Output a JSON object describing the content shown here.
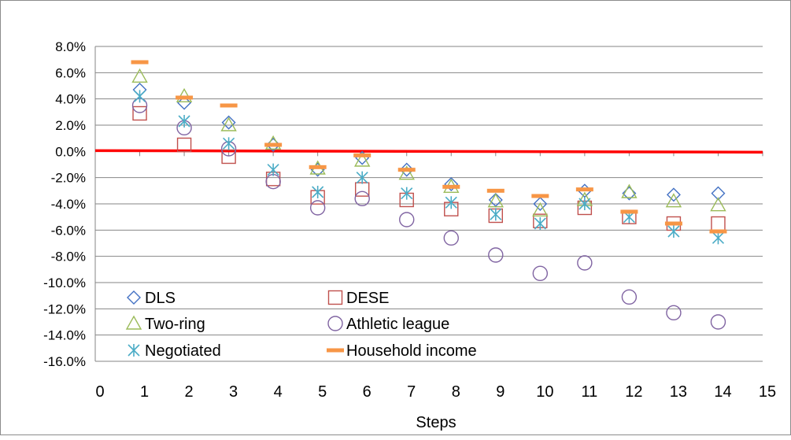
{
  "chart_data": {
    "type": "scatter",
    "title": "",
    "xlabel": "Steps",
    "ylabel": "",
    "xlim": [
      0,
      15
    ],
    "ylim": [
      -16,
      8
    ],
    "x_ticks": [
      0,
      1,
      2,
      3,
      4,
      5,
      6,
      7,
      8,
      9,
      10,
      11,
      12,
      13,
      14,
      15
    ],
    "y_ticks": [
      8,
      6,
      4,
      2,
      0,
      -2,
      -4,
      -6,
      -8,
      -10,
      -12,
      -14,
      -16
    ],
    "y_tick_format": "percent-1dp",
    "grid": {
      "horizontal": true,
      "vertical": false
    },
    "legend_position": "bottom-left inside plot, two columns",
    "reference_line": {
      "y": 0,
      "color": "#ff0000"
    },
    "series": [
      {
        "name": "DLS",
        "marker": "diamond",
        "color": "#4472c4",
        "x": [
          1,
          2,
          3,
          4,
          5,
          6,
          7,
          8,
          9,
          10,
          11,
          12,
          13,
          14
        ],
        "y": [
          4.7,
          3.7,
          2.2,
          0.5,
          -1.4,
          -0.5,
          -1.4,
          -2.5,
          -3.7,
          -4.0,
          -3.0,
          -3.2,
          -3.3,
          -3.2
        ]
      },
      {
        "name": "DESE",
        "marker": "square",
        "color": "#c0504d",
        "x": [
          1,
          2,
          3,
          4,
          5,
          6,
          7,
          8,
          9,
          10,
          11,
          12,
          13,
          14
        ],
        "y": [
          2.9,
          0.5,
          -0.4,
          -2.1,
          -3.5,
          -2.9,
          -3.7,
          -4.4,
          -4.9,
          -5.3,
          -4.3,
          -5.0,
          -5.5,
          -5.5
        ]
      },
      {
        "name": "Two-ring",
        "marker": "triangle",
        "color": "#9bbb59",
        "x": [
          1,
          2,
          3,
          4,
          5,
          6,
          7,
          8,
          9,
          10,
          11,
          12,
          13,
          14
        ],
        "y": [
          5.7,
          4.2,
          2.0,
          0.6,
          -1.3,
          -0.7,
          -1.7,
          -2.7,
          -3.8,
          -4.5,
          -3.7,
          -3.1,
          -3.8,
          -4.1
        ]
      },
      {
        "name": "Athletic league",
        "marker": "circle",
        "color": "#8064a2",
        "x": [
          1,
          2,
          3,
          4,
          5,
          6,
          7,
          8,
          9,
          10,
          11,
          12,
          13,
          14
        ],
        "y": [
          3.5,
          1.8,
          0.2,
          -2.3,
          -4.3,
          -3.6,
          -5.2,
          -6.6,
          -7.9,
          -9.3,
          -8.5,
          -11.1,
          -12.3,
          -13.0
        ]
      },
      {
        "name": "Negotiated",
        "marker": "asterisk",
        "color": "#4bacc6",
        "x": [
          1,
          2,
          3,
          4,
          5,
          6,
          7,
          8,
          9,
          10,
          11,
          12,
          13,
          14
        ],
        "y": [
          4.2,
          2.3,
          0.6,
          -1.4,
          -3.1,
          -2.0,
          -3.2,
          -3.9,
          -4.8,
          -5.5,
          -4.0,
          -5.0,
          -6.1,
          -6.6
        ]
      },
      {
        "name": "Household income",
        "marker": "dash",
        "color": "#f79646",
        "x": [
          1,
          2,
          3,
          4,
          5,
          6,
          7,
          8,
          9,
          10,
          11,
          12,
          13,
          14
        ],
        "y": [
          6.8,
          4.1,
          3.5,
          0.5,
          -1.2,
          -0.3,
          -1.4,
          -2.7,
          -3.0,
          -3.4,
          -2.9,
          -4.6,
          -5.5,
          -6.1
        ]
      }
    ]
  }
}
